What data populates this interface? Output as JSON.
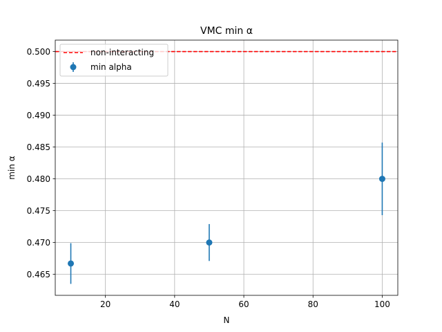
{
  "chart_data": {
    "type": "scatter",
    "title": "VMC min α",
    "xlabel": "N",
    "ylabel": "min α",
    "xlim": [
      5.5,
      104.5
    ],
    "ylim": [
      0.4617,
      0.5018
    ],
    "x_ticks": [
      20,
      40,
      60,
      80,
      100
    ],
    "x_tick_labels": [
      "20",
      "40",
      "60",
      "80",
      "100"
    ],
    "y_ticks": [
      0.465,
      0.47,
      0.475,
      0.48,
      0.485,
      0.49,
      0.495,
      0.5
    ],
    "y_tick_labels": [
      "0.465",
      "0.470",
      "0.475",
      "0.480",
      "0.485",
      "0.490",
      "0.495",
      "0.500"
    ],
    "grid": true,
    "legend_position": "top-left",
    "series": [
      {
        "name": "min alpha",
        "kind": "errorbar",
        "color": "#1f77b4",
        "points": [
          {
            "x": 10,
            "y": 0.4667,
            "err": 0.0032
          },
          {
            "x": 50,
            "y": 0.47,
            "err": 0.0029
          },
          {
            "x": 100,
            "y": 0.48,
            "err": 0.0057
          }
        ]
      }
    ],
    "reference_lines": [
      {
        "name": "non-interacting",
        "y": 0.5,
        "color": "#ff0000",
        "style": "dashed"
      }
    ]
  }
}
